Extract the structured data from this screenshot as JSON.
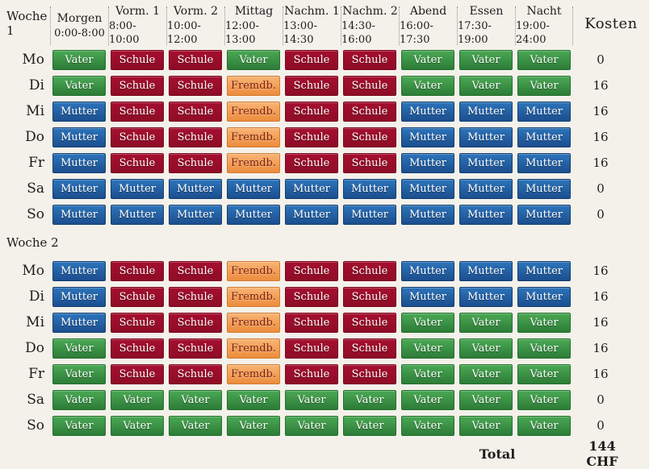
{
  "page": {
    "background": "#f3f1ea"
  },
  "header": {
    "week1_label": "Woche 1",
    "kosten_label": "Kosten",
    "columns": [
      {
        "name": "Morgen",
        "time": "0:00-8:00"
      },
      {
        "name": "Vorm. 1",
        "time": "8:00-10:00"
      },
      {
        "name": "Vorm. 2",
        "time": "10:00-12:00"
      },
      {
        "name": "Mittag",
        "time": "12:00-13:00"
      },
      {
        "name": "Nachm. 1",
        "time": "13:00-14:30"
      },
      {
        "name": "Nachm. 2",
        "time": "14:30-16:00"
      },
      {
        "name": "Abend",
        "time": "16:00-17:30"
      },
      {
        "name": "Essen",
        "time": "17:30-19:00"
      },
      {
        "name": "Nacht",
        "time": "19:00-24:00"
      }
    ]
  },
  "cell_types": {
    "vater": {
      "label": "Vater",
      "top": "#4aa854",
      "bottom": "#2d7c37",
      "border": "#26702f",
      "text": "#ffffff"
    },
    "schule": {
      "label": "Schule",
      "top": "#a60f2f",
      "bottom": "#8e0c26",
      "border": "#7c0a21",
      "text": "#ffffff"
    },
    "mutter": {
      "label": "Mutter",
      "top": "#2d74ba",
      "bottom": "#1b4e8e",
      "border": "#17406f",
      "text": "#ffffff"
    },
    "fremdb": {
      "label": "Fremdb.",
      "top": "#f9b475",
      "bottom": "#ec8c3c",
      "border": "#d07b34",
      "text": "#7c2212"
    }
  },
  "weeks": [
    {
      "id": "w1",
      "label": "Woche 1",
      "rows": [
        {
          "day": "Mo",
          "cells": [
            "vater",
            "schule",
            "schule",
            "vater",
            "schule",
            "schule",
            "vater",
            "vater",
            "vater"
          ],
          "kosten": "0"
        },
        {
          "day": "Di",
          "cells": [
            "vater",
            "schule",
            "schule",
            "fremdb",
            "schule",
            "schule",
            "vater",
            "vater",
            "vater"
          ],
          "kosten": "16"
        },
        {
          "day": "Mi",
          "cells": [
            "mutter",
            "schule",
            "schule",
            "fremdb",
            "schule",
            "schule",
            "mutter",
            "mutter",
            "mutter"
          ],
          "kosten": "16"
        },
        {
          "day": "Do",
          "cells": [
            "mutter",
            "schule",
            "schule",
            "fremdb",
            "schule",
            "schule",
            "mutter",
            "mutter",
            "mutter"
          ],
          "kosten": "16"
        },
        {
          "day": "Fr",
          "cells": [
            "mutter",
            "schule",
            "schule",
            "fremdb",
            "schule",
            "schule",
            "mutter",
            "mutter",
            "mutter"
          ],
          "kosten": "16"
        },
        {
          "day": "Sa",
          "cells": [
            "mutter",
            "mutter",
            "mutter",
            "mutter",
            "mutter",
            "mutter",
            "mutter",
            "mutter",
            "mutter"
          ],
          "kosten": "0"
        },
        {
          "day": "So",
          "cells": [
            "mutter",
            "mutter",
            "mutter",
            "mutter",
            "mutter",
            "mutter",
            "mutter",
            "mutter",
            "mutter"
          ],
          "kosten": "0"
        }
      ]
    },
    {
      "id": "w2",
      "label": "Woche 2",
      "rows": [
        {
          "day": "Mo",
          "cells": [
            "mutter",
            "schule",
            "schule",
            "fremdb",
            "schule",
            "schule",
            "mutter",
            "mutter",
            "mutter"
          ],
          "kosten": "16"
        },
        {
          "day": "Di",
          "cells": [
            "mutter",
            "schule",
            "schule",
            "fremdb",
            "schule",
            "schule",
            "mutter",
            "mutter",
            "mutter"
          ],
          "kosten": "16"
        },
        {
          "day": "Mi",
          "cells": [
            "mutter",
            "schule",
            "schule",
            "fremdb",
            "schule",
            "schule",
            "vater",
            "vater",
            "vater"
          ],
          "kosten": "16"
        },
        {
          "day": "Do",
          "cells": [
            "vater",
            "schule",
            "schule",
            "fremdb",
            "schule",
            "schule",
            "vater",
            "vater",
            "vater"
          ],
          "kosten": "16"
        },
        {
          "day": "Fr",
          "cells": [
            "vater",
            "schule",
            "schule",
            "fremdb",
            "schule",
            "schule",
            "vater",
            "vater",
            "vater"
          ],
          "kosten": "16"
        },
        {
          "day": "Sa",
          "cells": [
            "vater",
            "vater",
            "vater",
            "vater",
            "vater",
            "vater",
            "vater",
            "vater",
            "vater"
          ],
          "kosten": "0"
        },
        {
          "day": "So",
          "cells": [
            "vater",
            "vater",
            "vater",
            "vater",
            "vater",
            "vater",
            "vater",
            "vater",
            "vater"
          ],
          "kosten": "0"
        }
      ]
    }
  ],
  "footer": {
    "total_label": "Total",
    "total_value": "144 CHF"
  }
}
